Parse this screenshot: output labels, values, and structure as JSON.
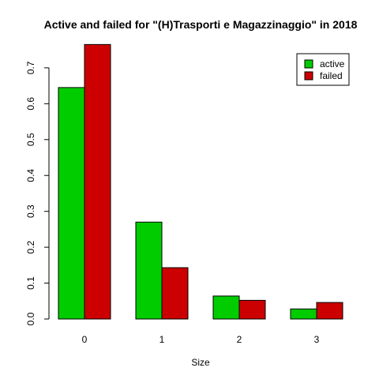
{
  "chart_data": {
    "type": "bar",
    "title": "Active and failed for \"(H)Trasporti e Magazzinaggio\" in 2018",
    "xlabel": "Size",
    "ylabel": "",
    "categories": [
      "0",
      "1",
      "2",
      "3"
    ],
    "series": [
      {
        "name": "active",
        "color": "#00cc00",
        "values": [
          0.645,
          0.27,
          0.064,
          0.028
        ]
      },
      {
        "name": "failed",
        "color": "#cc0000",
        "values": [
          0.765,
          0.143,
          0.052,
          0.046
        ]
      }
    ],
    "ylim": [
      0,
      0.78
    ],
    "yticks": [
      "0.0",
      "0.1",
      "0.2",
      "0.3",
      "0.4",
      "0.5",
      "0.6",
      "0.7"
    ],
    "grid": false,
    "legend_position": "top-right"
  }
}
